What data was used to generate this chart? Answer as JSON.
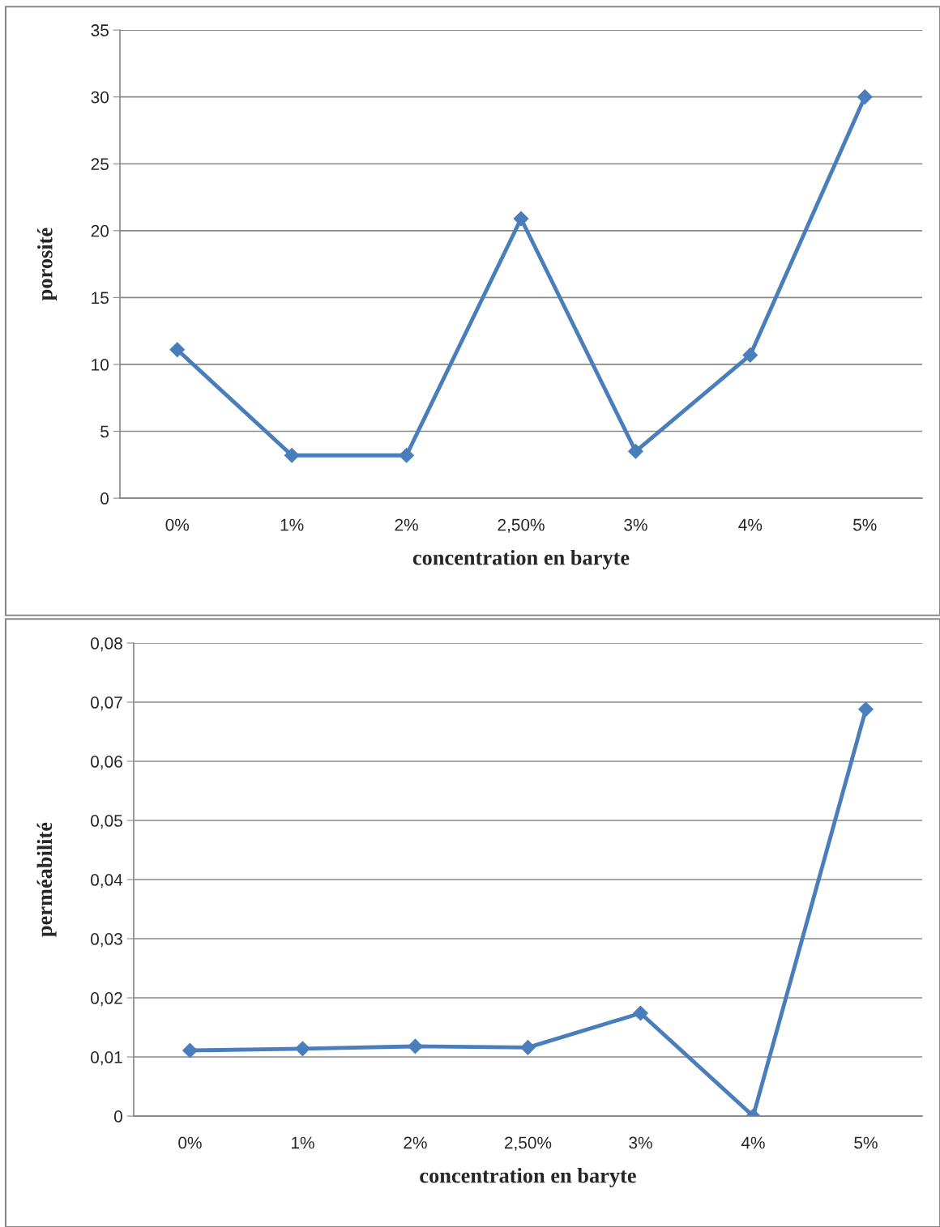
{
  "chart_data": [
    {
      "type": "line",
      "xlabel": "concentration en baryte",
      "ylabel": "porosité",
      "categories": [
        "0%",
        "1%",
        "2%",
        "2,50%",
        "3%",
        "4%",
        "5%"
      ],
      "series": [
        {
          "color": "#4a7ebb",
          "values": [
            11.1,
            3.2,
            3.2,
            20.9,
            3.5,
            10.7,
            30
          ]
        }
      ],
      "ylim": [
        0,
        35
      ],
      "yticks": [
        0,
        5,
        10,
        15,
        20,
        25,
        30,
        35
      ],
      "grid": "y",
      "marker": "diamond",
      "line_style": "solid",
      "legend": false
    },
    {
      "type": "line",
      "xlabel": "concentration en baryte",
      "ylabel": "perméabilité",
      "categories": [
        "0%",
        "1%",
        "2%",
        "2,50%",
        "3%",
        "4%",
        "5%"
      ],
      "series": [
        {
          "color": "#4a7ebb",
          "values": [
            0.0111,
            0.0114,
            0.0118,
            0.0116,
            0.0174,
            0,
            0.0688
          ]
        }
      ],
      "ylim": [
        0,
        0.08
      ],
      "yticks": [
        {
          "value": 0,
          "label": "0"
        },
        {
          "value": 0.01,
          "label": "0,01"
        },
        {
          "value": 0.02,
          "label": "0,02"
        },
        {
          "value": 0.03,
          "label": "0,03"
        },
        {
          "value": 0.04,
          "label": "0,04"
        },
        {
          "value": 0.05,
          "label": "0,05"
        },
        {
          "value": 0.06,
          "label": "0,06"
        },
        {
          "value": 0.07,
          "label": "0,07"
        },
        {
          "value": 0.08,
          "label": "0,08"
        }
      ],
      "grid": "y",
      "marker": "diamond",
      "line_style": "solid",
      "legend": false
    }
  ]
}
